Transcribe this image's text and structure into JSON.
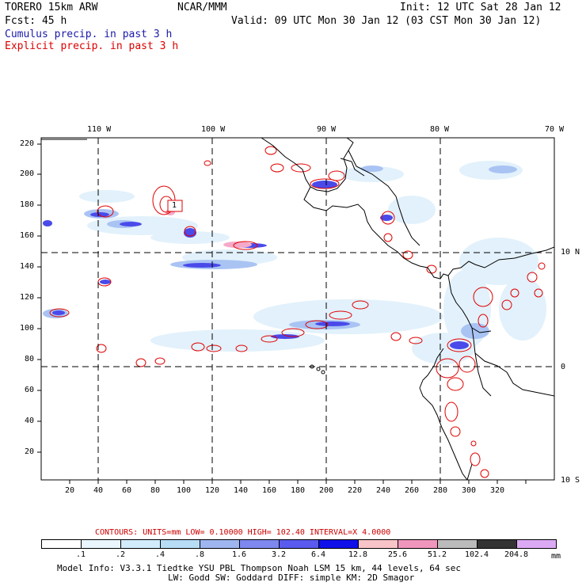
{
  "header": {
    "model": "TORERO  15km ARW",
    "center": "NCAR/MMM",
    "init": "Init: 12 UTC Sat 28 Jan 12",
    "fcst": "Fcst:   45 h",
    "valid": "Valid: 09 UTC Mon 30 Jan 12 (03 CST Mon 30 Jan 12)"
  },
  "legend": {
    "cumulus": "Cumulus precip. in past 3 h",
    "explicit": "Explicit precip. in past 3 h",
    "cumulus_color": "#1a1aaa",
    "explicit_color": "#dd0000"
  },
  "axes": {
    "lon_labels": [
      "110 W",
      "100 W",
      "90 W",
      "80 W",
      "70 W"
    ],
    "lat_labels": [
      "10 N",
      "0",
      "10 S"
    ],
    "x_ticks": [
      "20",
      "40",
      "60",
      "80",
      "100",
      "120",
      "140",
      "160",
      "180",
      "200",
      "220",
      "240",
      "260",
      "280",
      "300",
      "320"
    ],
    "y_ticks": [
      "220",
      "200",
      "180",
      "160",
      "140",
      "120",
      "100",
      "80",
      "60",
      "40",
      "20"
    ]
  },
  "annotation": {
    "box_label": "1"
  },
  "contours": {
    "text": "CONTOURS:  UNITS=mm  LOW= 0.10000      HIGH=  102.40      INTERVAL=X  4.0000",
    "color": "#cc0000"
  },
  "colorbar": {
    "unit": "mm",
    "labels": [
      ".1",
      ".2",
      ".4",
      ".8",
      "1.6",
      "3.2",
      "6.4",
      "12.8",
      "25.6",
      "51.2",
      "102.4",
      "204.8"
    ],
    "colors": [
      "#ffffff",
      "#eaf6fd",
      "#d2ecfb",
      "#b6dcf6",
      "#9fb5f0",
      "#7f88ef",
      "#5a5aee",
      "#1010e8",
      "#f9c4c8",
      "#f096bc",
      "#bbbbbb",
      "#333333",
      "#dcaaf5"
    ]
  },
  "footer": {
    "line1": "Model Info: V3.3.1   Tiedtke YSU PBL  Thompson    Noah LSM  15 km,   44 levels,   64 sec",
    "line2": "LW: Godd SW: Goddard DIFF: simple KM: 2D Smagor"
  }
}
